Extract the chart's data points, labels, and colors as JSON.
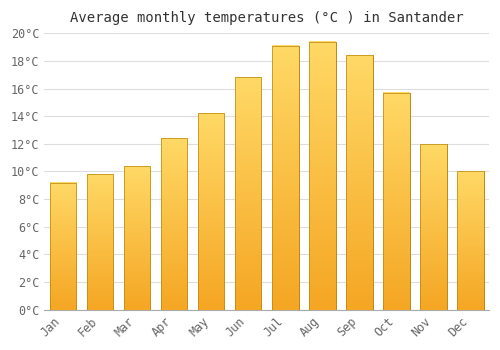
{
  "title": "Average monthly temperatures (°C ) in Santander",
  "months": [
    "Jan",
    "Feb",
    "Mar",
    "Apr",
    "May",
    "Jun",
    "Jul",
    "Aug",
    "Sep",
    "Oct",
    "Nov",
    "Dec"
  ],
  "values": [
    9.2,
    9.8,
    10.4,
    12.4,
    14.2,
    16.8,
    19.1,
    19.4,
    18.4,
    15.7,
    12.0,
    10.0
  ],
  "bar_color_bottom": "#F5A623",
  "bar_color_top": "#FFD966",
  "bar_edge_color": "#B8860B",
  "ylim": [
    0,
    20
  ],
  "ytick_step": 2,
  "background_color": "#FFFFFF",
  "plot_bg_color": "#FFFFFF",
  "grid_color": "#DDDDDD",
  "title_fontsize": 10,
  "tick_fontsize": 8.5,
  "font_family": "monospace"
}
